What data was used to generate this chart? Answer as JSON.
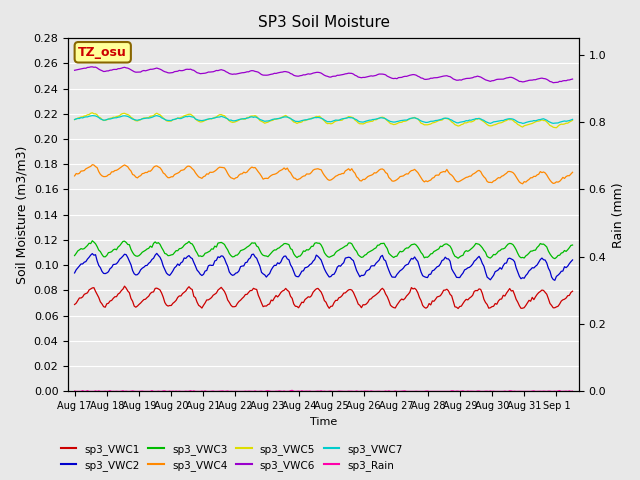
{
  "title": "SP3 Soil Moisture",
  "xlabel": "Time",
  "ylabel_left": "Soil Moisture (m3/m3)",
  "ylabel_right": "Rain (mm)",
  "xlim_days": [
    0,
    31
  ],
  "ylim_left": [
    0.0,
    0.28
  ],
  "ylim_right": [
    0.0,
    1.05
  ],
  "x_ticks_labels": [
    "Aug 17",
    "Aug 18",
    "Aug 19",
    "Aug 20",
    "Aug 21",
    "Aug 22",
    "Aug 23",
    "Aug 24",
    "Aug 25",
    "Aug 26",
    "Aug 27",
    "Aug 28",
    "Aug 29",
    "Aug 30",
    "Aug 31",
    "Sep 1"
  ],
  "n_points": 310,
  "series": {
    "sp3_VWC1": {
      "color": "#cc0000",
      "base": 0.075,
      "amp": 0.013,
      "trend": -0.002,
      "period": 1.0
    },
    "sp3_VWC2": {
      "color": "#0000cc",
      "base": 0.101,
      "amp": 0.014,
      "trend": -0.004,
      "period": 1.0
    },
    "sp3_VWC3": {
      "color": "#00bb00",
      "base": 0.113,
      "amp": 0.01,
      "trend": -0.002,
      "period": 1.0
    },
    "sp3_VWC4": {
      "color": "#ff8800",
      "base": 0.175,
      "amp": 0.008,
      "trend": -0.006,
      "period": 1.0
    },
    "sp3_VWC5": {
      "color": "#dddd00",
      "base": 0.218,
      "amp": 0.005,
      "trend": -0.006,
      "period": 1.0
    },
    "sp3_VWC6": {
      "color": "#9900cc",
      "base": 0.256,
      "amp": 0.003,
      "trend": -0.01,
      "period": 1.0
    },
    "sp3_VWC7": {
      "color": "#00cccc",
      "base": 0.217,
      "amp": 0.003,
      "trend": -0.003,
      "period": 1.0
    },
    "sp3_Rain": {
      "color": "#ff00aa",
      "base": 0.0,
      "amp": 0.0,
      "trend": 0.0,
      "period": 1.0
    }
  },
  "background_color": "#e8e8e8",
  "grid_color": "#ffffff",
  "annotation_text": "TZ_osu",
  "annotation_bg": "#ffff99",
  "annotation_border": "#886600"
}
